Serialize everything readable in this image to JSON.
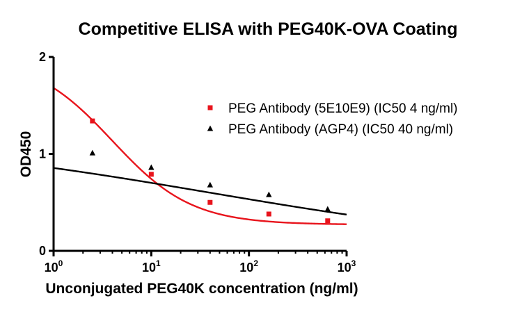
{
  "chart_data": {
    "type": "scatter",
    "title": "Competitive ELISA with PEG40K-OVA Coating",
    "xlabel": "Unconjugated PEG40K concentration (ng/ml)",
    "ylabel": "OD450",
    "x_scale": "log10",
    "xlim": [
      1,
      1000
    ],
    "ylim": [
      0,
      2
    ],
    "x_ticks": [
      {
        "base": "10",
        "exp": "0",
        "value": 1
      },
      {
        "base": "10",
        "exp": "1",
        "value": 10
      },
      {
        "base": "10",
        "exp": "2",
        "value": 100
      },
      {
        "base": "10",
        "exp": "3",
        "value": 1000
      }
    ],
    "y_ticks": [
      {
        "label": "0",
        "value": 0
      },
      {
        "label": "1",
        "value": 1
      },
      {
        "label": "2",
        "value": 2
      }
    ],
    "grid": false,
    "legend_position": "top-right",
    "series": [
      {
        "name": "PEG Antibody (5E10E9) (IC50 4 ng/ml)",
        "color": "#e8141c",
        "marker": "square",
        "x": [
          2.5,
          10,
          40,
          160,
          640
        ],
        "y": [
          1.34,
          0.79,
          0.5,
          0.38,
          0.31
        ],
        "fit": {
          "bottom": 0.27,
          "top": 2.0,
          "ic50": 4.0,
          "hill": 1.07
        }
      },
      {
        "name": "PEG Antibody (AGP4) (IC50 40 ng/ml)",
        "color": "#000000",
        "marker": "triangle",
        "x": [
          2.5,
          10,
          40,
          160,
          640
        ],
        "y": [
          1.01,
          0.86,
          0.68,
          0.58,
          0.43
        ],
        "fit": {
          "bottom": 0.0,
          "top": 1.2,
          "ic50": 40.0,
          "hill": 0.246
        }
      }
    ]
  }
}
